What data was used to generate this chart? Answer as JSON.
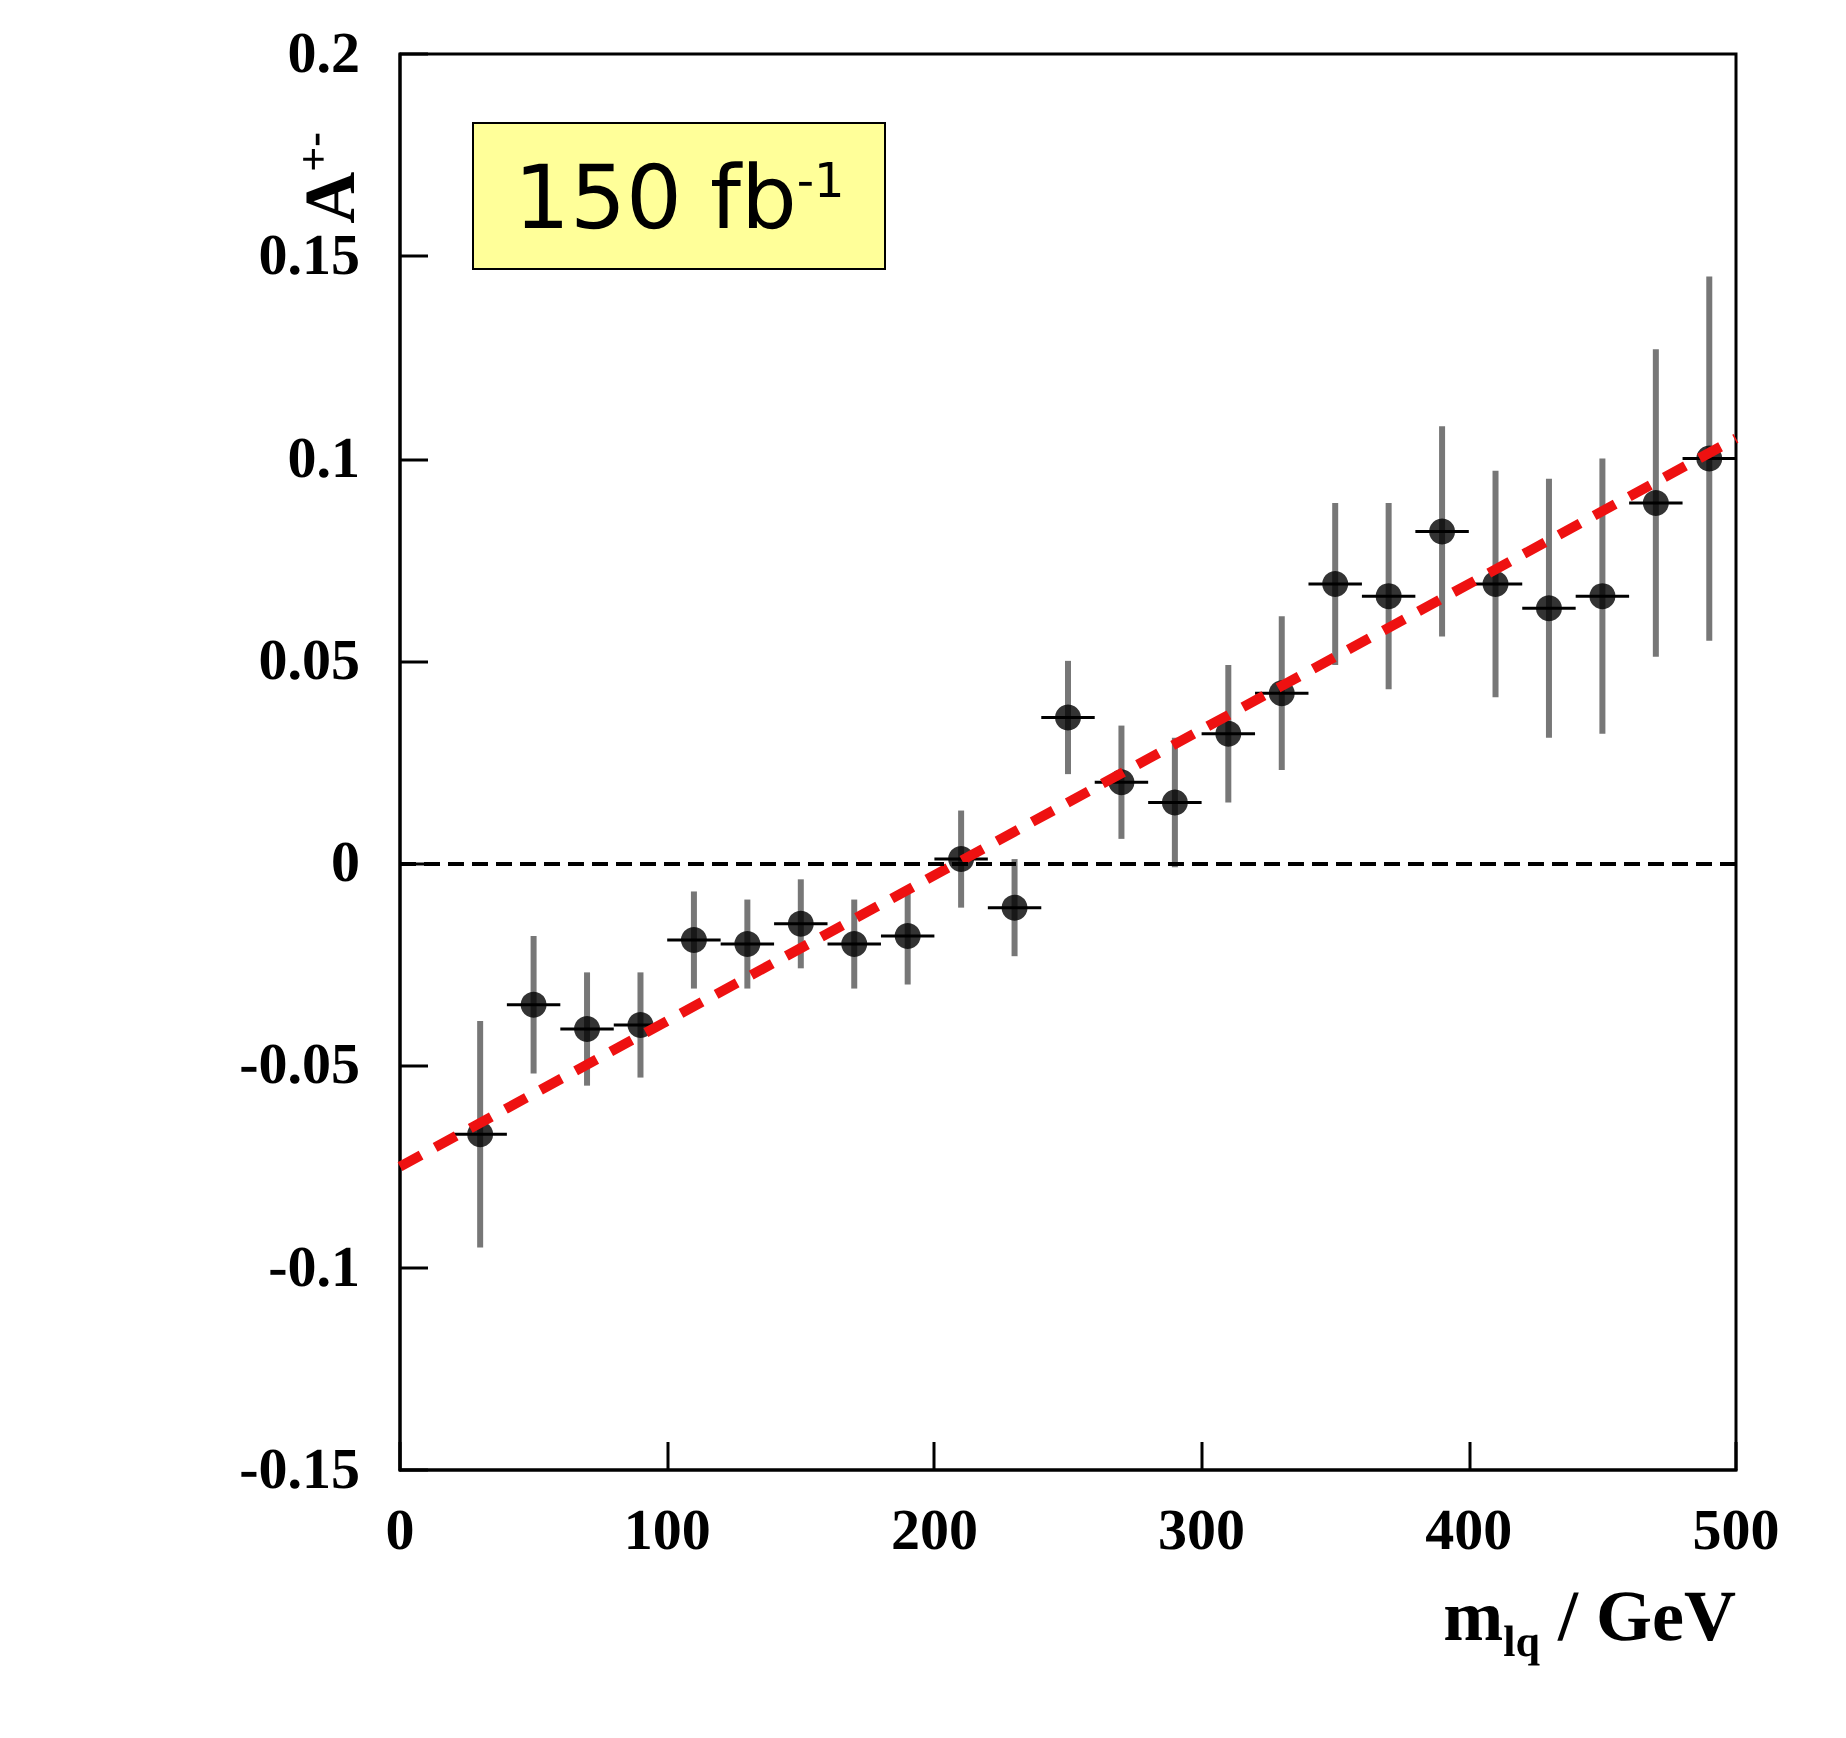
{
  "chart_data": {
    "type": "scatter",
    "xlabel": "m$_{lq}$ / GeV",
    "ylabel": "A$^{+-}$",
    "annotations": [
      "150 fb$^{-1}$"
    ],
    "xlim": [
      0,
      500
    ],
    "xticks": [
      0,
      100,
      200,
      300,
      400,
      500
    ],
    "ylim": [
      -0.15,
      0.2
    ],
    "yticks": [
      -0.15,
      -0.1,
      -0.05,
      0,
      0.05,
      0.1,
      0.15,
      0.2
    ],
    "grid": false,
    "marker": "circle",
    "ref_lines": [
      {
        "axis": "y",
        "value": 0,
        "color": "#000000",
        "line_style": "dashed"
      }
    ],
    "series": [
      {
        "color": "#000000",
        "x": [
          30,
          50,
          70,
          90,
          110,
          130,
          150,
          170,
          190,
          210,
          230,
          250,
          270,
          290,
          310,
          330,
          350,
          370,
          390,
          410,
          430,
          450,
          470,
          490
        ],
        "values": [
          -0.067,
          -0.035,
          -0.041,
          -0.04,
          -0.019,
          -0.02,
          -0.015,
          -0.02,
          -0.018,
          0.001,
          -0.011,
          0.036,
          0.02,
          0.015,
          0.032,
          0.042,
          0.069,
          0.066,
          0.082,
          0.069,
          0.063,
          0.066,
          0.089,
          0.1
        ],
        "errors": [
          0.028,
          0.017,
          0.014,
          0.013,
          0.012,
          0.011,
          0.011,
          0.011,
          0.012,
          0.012,
          0.012,
          0.014,
          0.014,
          0.016,
          0.017,
          0.019,
          0.02,
          0.023,
          0.026,
          0.028,
          0.032,
          0.034,
          0.038,
          0.045
        ],
        "xerrors": [
          10,
          10,
          10,
          10,
          10,
          10,
          10,
          10,
          10,
          10,
          10,
          10,
          10,
          10,
          10,
          10,
          10,
          10,
          10,
          10,
          10,
          10,
          10,
          10
        ]
      },
      {
        "type": "line",
        "color": "#ee1111",
        "line_style": "dashed",
        "marker": "none",
        "x": [
          0,
          500
        ],
        "values": [
          -0.075,
          0.105
        ]
      }
    ]
  }
}
